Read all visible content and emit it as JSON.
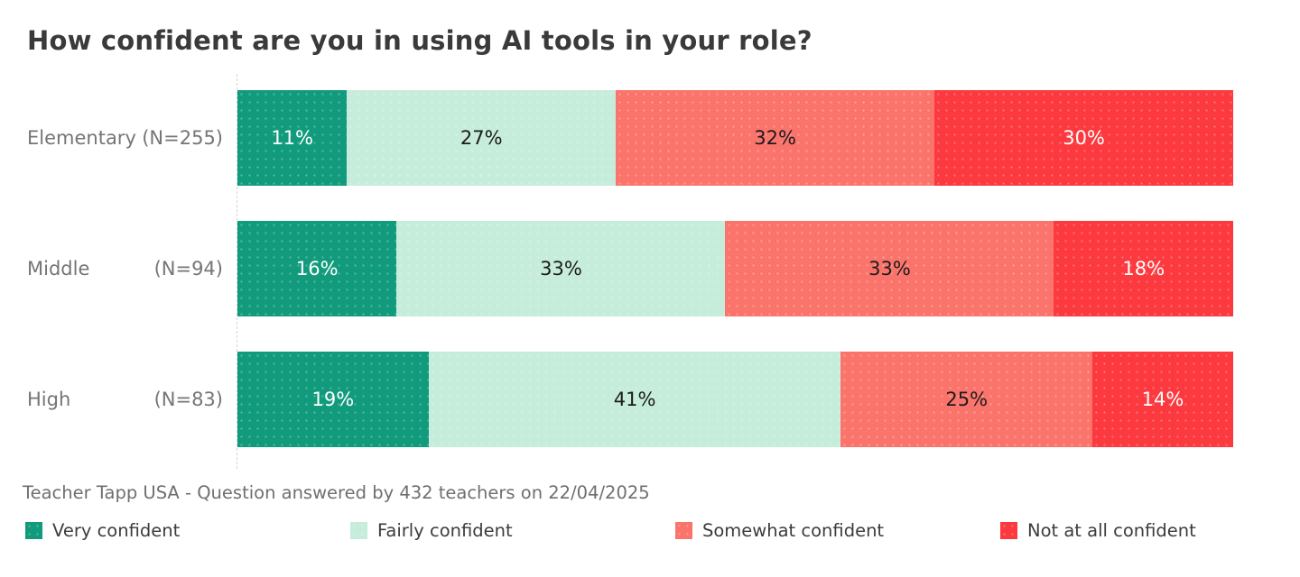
{
  "source_note": "Teacher Tapp USA - Question answered by 432 teachers on 22/04/2025",
  "palette": {
    "very_confident": "#119b7c",
    "fairly_confident": "#c6ecdb",
    "somewhat_confident": "#fb746c",
    "not_at_all_confident": "#fc393e",
    "title_text": "#3a3a3a",
    "category_text": "#757575",
    "source_text": "#6f6f6f",
    "axis_dash": "#d4d4d4"
  },
  "chart_data": {
    "type": "bar",
    "subtype": "horizontal-stacked-100pct",
    "title": "How confident are you in using AI tools in your role?",
    "xlabel": "",
    "ylabel": "",
    "xlim": [
      0,
      100
    ],
    "value_format": "percent",
    "grid": false,
    "legend_position": "bottom",
    "categories": [
      "Elementary",
      "Middle",
      "High"
    ],
    "category_counts": [
      "(N=255)",
      "(N=94)",
      "(N=83)"
    ],
    "series": [
      {
        "name": "Very confident",
        "color": "#119b7c",
        "text_color": "#ffffff",
        "values": [
          11,
          16,
          19
        ]
      },
      {
        "name": "Fairly confident",
        "color": "#c6ecdb",
        "text_color": "#1b1b1b",
        "values": [
          27,
          33,
          41
        ]
      },
      {
        "name": "Somewhat confident",
        "color": "#fb746c",
        "text_color": "#1b1b1b",
        "values": [
          32,
          33,
          25
        ]
      },
      {
        "name": "Not at all confident",
        "color": "#fc393e",
        "text_color": "#ffffff",
        "values": [
          30,
          18,
          14
        ]
      }
    ]
  }
}
